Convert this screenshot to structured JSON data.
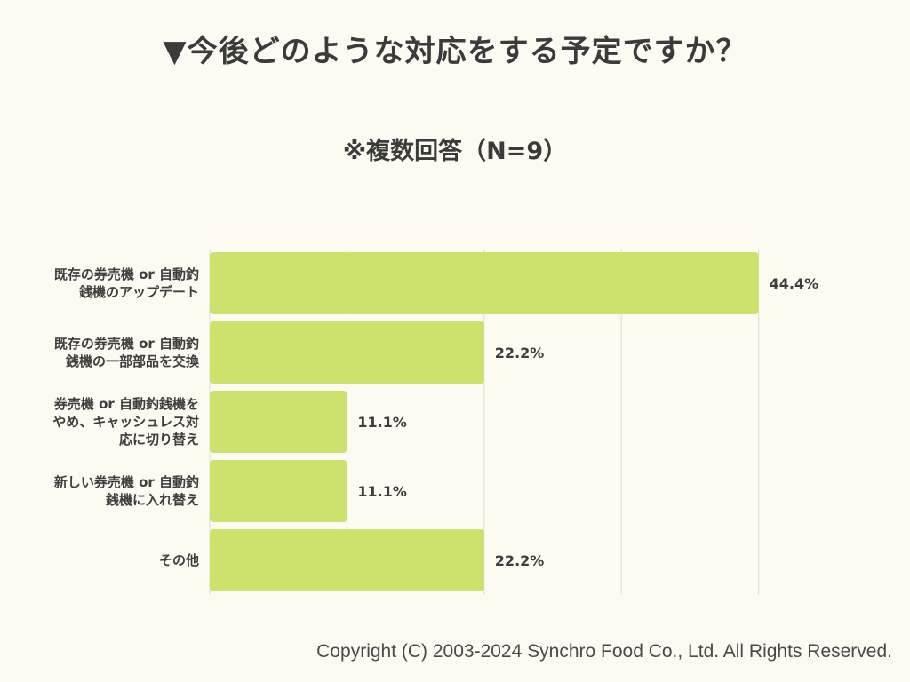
{
  "title": "▼今後どのような対応をする予定ですか？",
  "subtitle": "※複数回答（N=9）",
  "copyright": "Copyright (C) 2003-2024  Synchro Food Co., Ltd. All Rights Reserved.",
  "colors": {
    "bar": "#cde26c",
    "grid": "#dcdcd2",
    "text": "#3e3e3e",
    "background": "#fcfaf1"
  },
  "chart_data": {
    "type": "bar",
    "orientation": "horizontal",
    "title": "▼今後どのような対応をする予定ですか？",
    "subtitle": "※複数回答（N=9）",
    "categories": [
      [
        "既存の券売機 or 自動釣",
        "銭機のアップデート"
      ],
      [
        "既存の券売機 or 自動釣",
        "銭機の一部部品を交換"
      ],
      [
        "券売機 or 自動釣銭機を",
        "やめ、キャッシュレス対",
        "応に切り替え"
      ],
      [
        "新しい券売機 or 自動釣",
        "銭機に入れ替え"
      ],
      [
        "その他"
      ]
    ],
    "values": [
      44.4,
      22.2,
      11.1,
      11.1,
      22.2
    ],
    "value_labels": [
      "44.4%",
      "22.2%",
      "11.1%",
      "11.1%",
      "22.2%"
    ],
    "unit": "%",
    "xlim": [
      0,
      55.5
    ],
    "grid": true,
    "legend": "none"
  }
}
